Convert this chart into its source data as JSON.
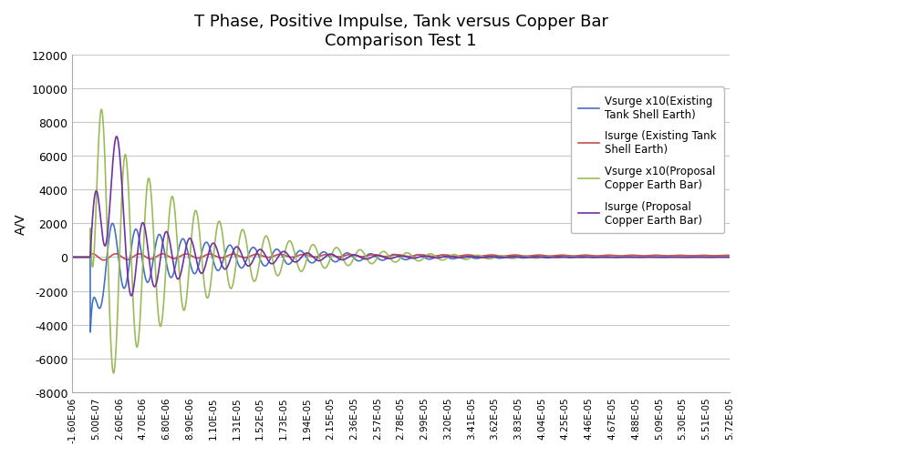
{
  "title": "T Phase, Positive Impulse, Tank versus Copper Bar\nComparison Test 1",
  "ylabel": "A/V",
  "ylim": [
    -8000,
    12000
  ],
  "yticks": [
    -8000,
    -6000,
    -4000,
    -2000,
    0,
    2000,
    4000,
    6000,
    8000,
    10000,
    12000
  ],
  "background_color": "#ffffff",
  "grid_color": "#c8c8c8",
  "series": [
    {
      "label": "Vsurge x10(Existing\nTank Shell Earth)",
      "color": "#4472c4",
      "linewidth": 1.2
    },
    {
      "label": "Isurge (Existing Tank\nShell Earth)",
      "color": "#c0504d",
      "linewidth": 1.2
    },
    {
      "label": "Vsurge x10(Proposal\nCopper Earth Bar)",
      "color": "#9bbb59",
      "linewidth": 1.2
    },
    {
      "label": "Isurge (Proposal\nCopper Earth Bar)",
      "color": "#7030a0",
      "linewidth": 1.2
    }
  ],
  "x_tick_vals": [
    -1.6e-06,
    5e-07,
    2.6e-06,
    4.7e-06,
    6.8e-06,
    8.9e-06,
    1.1e-05,
    1.31e-05,
    1.52e-05,
    1.73e-05,
    1.94e-05,
    2.15e-05,
    2.36e-05,
    2.57e-05,
    2.78e-05,
    2.99e-05,
    3.2e-05,
    3.41e-05,
    3.62e-05,
    3.83e-05,
    4.04e-05,
    4.25e-05,
    4.46e-05,
    4.67e-05,
    4.88e-05,
    5.09e-05,
    5.3e-05,
    5.51e-05,
    5.72e-05
  ],
  "x_tick_labels": [
    "-1.60E-06",
    "5.00E-07",
    "2.60E-06",
    "4.70E-06",
    "6.80E-06",
    "8.90E-06",
    "1.10E-05",
    "1.31E-05",
    "1.52E-05",
    "1.73E-05",
    "1.94E-05",
    "2.15E-05",
    "2.36E-05",
    "2.57E-05",
    "2.78E-05",
    "2.99E-05",
    "3.20E-05",
    "3.41E-05",
    "3.62E-05",
    "3.83E-05",
    "4.04E-05",
    "4.25E-05",
    "4.46E-05",
    "4.67E-05",
    "4.88E-05",
    "5.09E-05",
    "5.30E-05",
    "5.51E-05",
    "5.72E-05"
  ]
}
